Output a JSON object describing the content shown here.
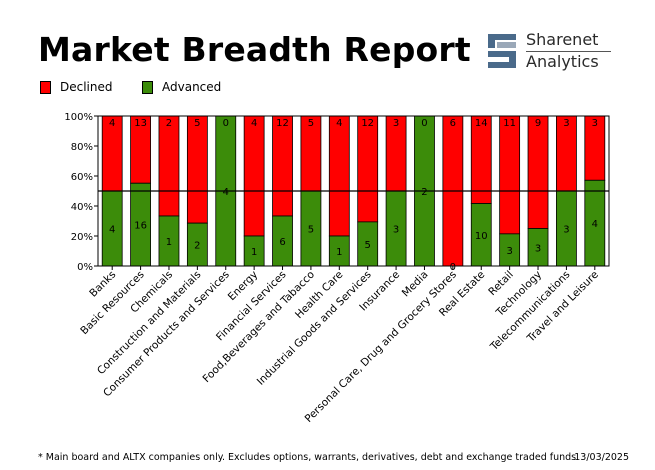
{
  "header": {
    "title": "Market Breadth Report",
    "logo": {
      "name": "Sharenet",
      "sub": "Analytics",
      "icon": "sharenet-logo-icon"
    }
  },
  "legend": [
    {
      "label": "Declined",
      "color": "#ff0000"
    },
    {
      "label": "Advanced",
      "color": "#3c8c0a"
    }
  ],
  "chart_data": {
    "type": "bar",
    "stacked": true,
    "percent": true,
    "categories": [
      "Banks",
      "Basic Resources",
      "Chemicals",
      "Construction and Materials",
      "Consumer Products and Services",
      "Energy",
      "Financial Services",
      "Food,Beverages and Tabacco",
      "Health Care",
      "Industrial Goods and Services",
      "Insurance",
      "Media",
      "Personal Care, Drug and Grocery Stores",
      "Real Estate",
      "Retail",
      "Technology",
      "Telecommunications",
      "Travel and Leisure"
    ],
    "series": [
      {
        "name": "Advanced",
        "color": "#3c8c0a",
        "values": [
          4,
          16,
          1,
          2,
          4,
          1,
          6,
          5,
          1,
          5,
          3,
          2,
          0,
          10,
          3,
          3,
          3,
          4
        ]
      },
      {
        "name": "Declined",
        "color": "#ff0000",
        "values": [
          4,
          13,
          2,
          5,
          0,
          4,
          12,
          5,
          4,
          12,
          3,
          0,
          6,
          14,
          11,
          9,
          3,
          3
        ]
      }
    ],
    "yticks": [
      "0%",
      "20%",
      "40%",
      "60%",
      "80%",
      "100%"
    ],
    "ylim": [
      0,
      100
    ],
    "reference_line": 50,
    "xlabel": "",
    "ylabel": ""
  },
  "footer": {
    "note": "* Main board and ALTX companies only. Excludes options, warrants, derivatives, debt and exchange traded funds",
    "date": "13/03/2025"
  }
}
